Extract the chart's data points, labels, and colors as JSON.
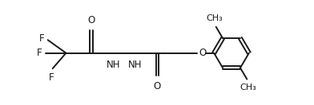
{
  "background": "#ffffff",
  "line_color": "#1a1a1a",
  "line_width": 1.4,
  "font_size": 8.5,
  "figsize": [
    3.92,
    1.32
  ],
  "dpi": 100,
  "xlim": [
    0,
    10
  ],
  "ylim": [
    0,
    3.4
  ]
}
